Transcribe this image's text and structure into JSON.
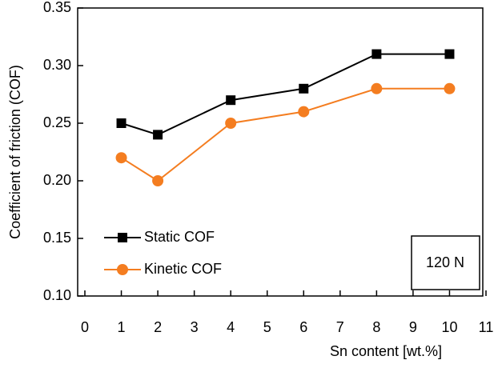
{
  "chart_data": {
    "type": "line",
    "x_label": "Sn content [wt.%]",
    "y_label": "Coefficient of friction (COF)",
    "annotation": "120 N",
    "x": [
      1,
      2,
      4,
      6,
      8,
      10
    ],
    "series": [
      {
        "name": "Static COF",
        "color": "#000000",
        "marker": "square",
        "values": [
          0.25,
          0.24,
          0.27,
          0.28,
          0.31,
          0.31
        ]
      },
      {
        "name": "Kinetic COF",
        "color": "#f47d20",
        "marker": "circle",
        "values": [
          0.22,
          0.2,
          0.25,
          0.26,
          0.28,
          0.28
        ]
      }
    ],
    "xlim": [
      0,
      11
    ],
    "xticks": [
      0,
      1,
      2,
      3,
      4,
      5,
      6,
      7,
      8,
      9,
      10,
      11
    ],
    "ylim": [
      0.1,
      0.35
    ],
    "yticks": [
      {
        "value": 0.1,
        "label": "0.10"
      },
      0.15,
      {
        "value": 0.2,
        "label": "0.20"
      },
      0.25,
      {
        "value": 0.3,
        "label": "0.30"
      },
      0.35
    ],
    "legend": "lower-left"
  }
}
